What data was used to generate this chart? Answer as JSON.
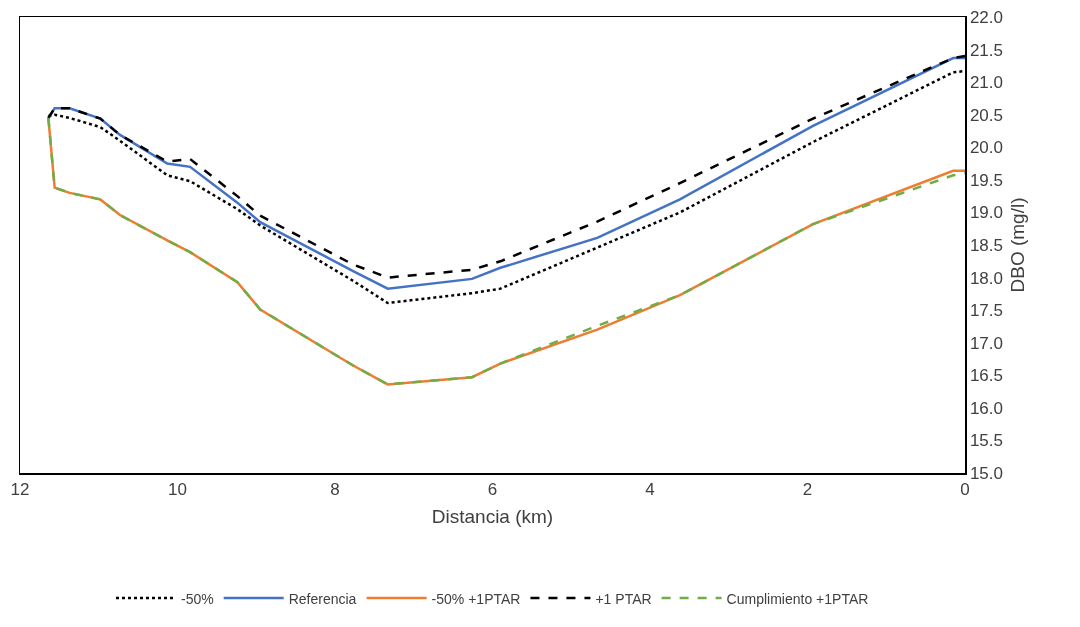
{
  "chart_data": {
    "type": "line",
    "xlabel": "Distancia (km)",
    "ylabel": "DBO (mg/l)",
    "xlim": [
      12,
      0
    ],
    "xticks": [
      12,
      10,
      8,
      6,
      4,
      2,
      0
    ],
    "ylim": [
      15,
      22
    ],
    "yticks": [
      {
        "value": 15,
        "label": "15.0"
      },
      15.5,
      {
        "value": 16,
        "label": "16.0"
      },
      16.5,
      {
        "value": 17,
        "label": "17.0"
      },
      17.5,
      {
        "value": 18,
        "label": "18.0"
      },
      18.5,
      {
        "value": 19,
        "label": "19.0"
      },
      19.5,
      {
        "value": 20,
        "label": "20.0"
      },
      20.5,
      {
        "value": 21,
        "label": "21.0"
      },
      21.5,
      {
        "value": 22,
        "label": "22.0"
      }
    ],
    "grid": false,
    "legend": "bottom",
    "marker": "none",
    "x": [
      11.64,
      11.56,
      11.37,
      10.98,
      10.73,
      10.13,
      9.84,
      9.24,
      8.95,
      7.77,
      7.33,
      6.26,
      5.9,
      4.67,
      3.62,
      1.93,
      0.15,
      0
    ],
    "series": [
      {
        "name": "-50%",
        "color": "#000000",
        "line_style": "dotted",
        "values": [
          20.48,
          20.5,
          20.45,
          20.31,
          20.1,
          19.57,
          19.48,
          19.05,
          18.8,
          17.95,
          17.61,
          17.76,
          17.83,
          18.46,
          19.0,
          20.08,
          21.15,
          21.17
        ]
      },
      {
        "name": "Referencia",
        "color": "#4472c4",
        "line_style": "solid",
        "values": [
          20.45,
          20.6,
          20.6,
          20.44,
          20.19,
          19.75,
          19.7,
          19.15,
          18.85,
          18.1,
          17.83,
          17.98,
          18.15,
          18.61,
          19.2,
          20.33,
          21.37,
          21.37
        ]
      },
      {
        "name": "-50% +1PTAR",
        "color": "#ed7d31",
        "line_style": "solid",
        "values": [
          20.45,
          19.38,
          19.3,
          19.2,
          18.96,
          18.57,
          18.39,
          17.93,
          17.51,
          16.65,
          16.36,
          16.47,
          16.68,
          17.2,
          17.73,
          18.82,
          19.64,
          19.64
        ]
      },
      {
        "name": "+1 PTAR",
        "color": "#000000",
        "line_style": "dashed",
        "values": [
          20.45,
          20.6,
          20.6,
          20.44,
          20.19,
          19.78,
          19.82,
          19.25,
          18.95,
          18.2,
          18.0,
          18.12,
          18.25,
          18.86,
          19.45,
          20.44,
          21.37,
          21.4
        ]
      },
      {
        "name": "Cumplimiento +1PTAR",
        "color": "#70ad47",
        "line_style": "dashed",
        "values": [
          20.45,
          19.38,
          19.3,
          19.2,
          18.96,
          18.57,
          18.39,
          17.93,
          17.51,
          16.65,
          16.36,
          16.47,
          16.68,
          17.26,
          17.73,
          18.82,
          19.57,
          19.6
        ]
      }
    ]
  }
}
